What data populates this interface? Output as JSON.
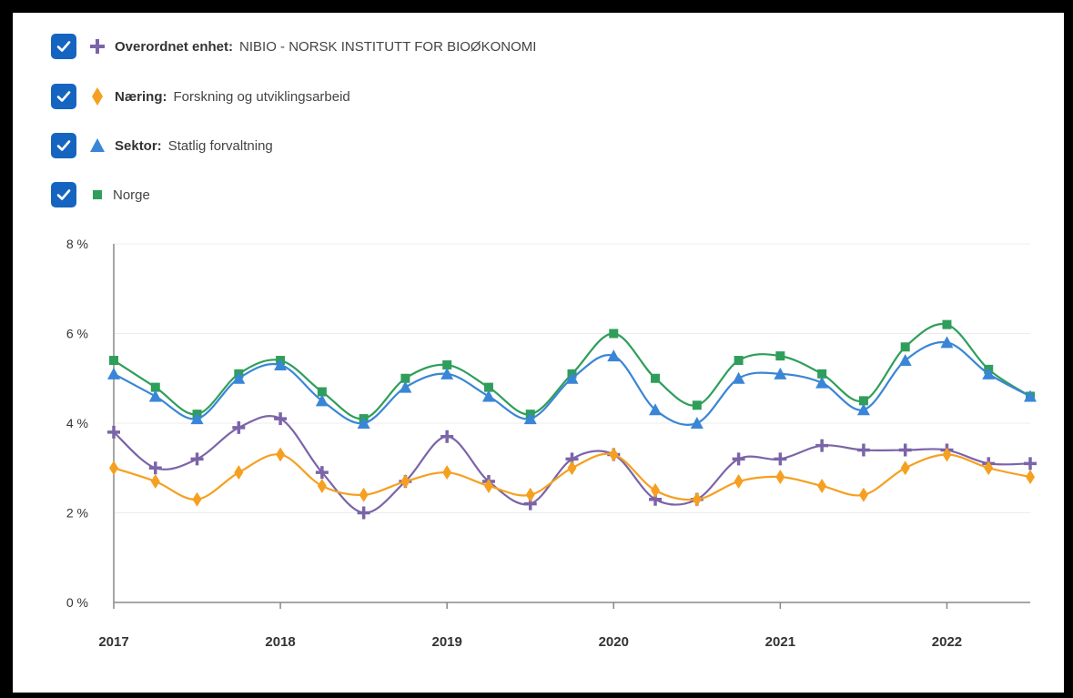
{
  "legend": [
    {
      "key": "Overordnet enhet:",
      "value": "NIBIO - NORSK INSTITUTT FOR BIOØKONOMI",
      "color": "#7b64a8",
      "marker": "plus",
      "checked": true
    },
    {
      "key": "Næring:",
      "value": "Forskning og utviklingsarbeid",
      "color": "#f5a020",
      "marker": "diamond",
      "checked": true
    },
    {
      "key": "Sektor:",
      "value": "Statlig forvaltning",
      "color": "#3a86d6",
      "marker": "triangle",
      "checked": true
    },
    {
      "key": "",
      "value": "Norge",
      "color": "#2f9e5a",
      "marker": "square",
      "checked": true
    }
  ],
  "chart_data": {
    "type": "line",
    "title": "",
    "xlabel": "",
    "ylabel": "",
    "x_ticks": [
      "2017",
      "2018",
      "2019",
      "2020",
      "2021",
      "2022"
    ],
    "y_ticks": [
      "0 %",
      "2 %",
      "4 %",
      "6 %",
      "8 %"
    ],
    "ylim": [
      0,
      8
    ],
    "x": [
      "2017",
      "2017 K2",
      "2017 K3",
      "2017 K4",
      "2018",
      "2018 K2",
      "2018 K3",
      "2018 K4",
      "2019",
      "2019 K2",
      "2019 K3",
      "2019 K4",
      "2020",
      "2020 K2",
      "2020 K3",
      "2020 K4",
      "2021",
      "2021 K2",
      "2021 K3",
      "2021 K4",
      "2022",
      "2022 K2",
      "2022 K3"
    ],
    "series": [
      {
        "name": "Norge",
        "color": "#2f9e5a",
        "marker": "square",
        "values": [
          5.4,
          4.8,
          4.2,
          5.1,
          5.4,
          4.7,
          4.1,
          5.0,
          5.3,
          4.8,
          4.2,
          5.1,
          6.0,
          5.0,
          4.4,
          5.4,
          5.5,
          5.1,
          4.5,
          5.7,
          6.2,
          5.2,
          4.6
        ]
      },
      {
        "name": "Statlig forvaltning",
        "color": "#3a86d6",
        "marker": "triangle",
        "values": [
          5.1,
          4.6,
          4.1,
          5.0,
          5.3,
          4.5,
          4.0,
          4.8,
          5.1,
          4.6,
          4.1,
          5.0,
          5.5,
          4.3,
          4.0,
          5.0,
          5.1,
          4.9,
          4.3,
          5.4,
          5.8,
          5.1,
          4.6
        ]
      },
      {
        "name": "NIBIO - NORSK INSTITUTT FOR BIOØKONOMI",
        "color": "#7b64a8",
        "marker": "plus",
        "values": [
          3.8,
          3.0,
          3.2,
          3.9,
          4.1,
          2.9,
          2.0,
          2.7,
          3.7,
          2.7,
          2.2,
          3.2,
          3.3,
          2.3,
          2.3,
          3.2,
          3.2,
          3.5,
          3.4,
          3.4,
          3.4,
          3.1,
          3.1
        ]
      },
      {
        "name": "Forskning og utviklingsarbeid",
        "color": "#f5a020",
        "marker": "diamond",
        "values": [
          3.0,
          2.7,
          2.3,
          2.9,
          3.3,
          2.6,
          2.4,
          2.7,
          2.9,
          2.6,
          2.4,
          3.0,
          3.3,
          2.5,
          2.3,
          2.7,
          2.8,
          2.6,
          2.4,
          3.0,
          3.3,
          3.0,
          2.8
        ]
      }
    ],
    "grid": true,
    "legend_position": "top-left"
  }
}
